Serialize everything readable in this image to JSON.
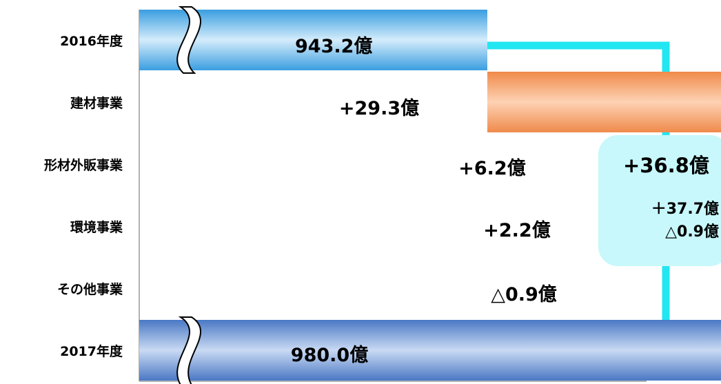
{
  "chart_data": {
    "type": "waterfall",
    "categories": [
      "2016年度",
      "建材事業",
      "形材外販事業",
      "環境事業",
      "その他事業",
      "2017年度"
    ],
    "values": [
      943.2,
      29.3,
      6.2,
      2.2,
      -0.9,
      980.0
    ],
    "value_labels": [
      "943.2億",
      "+29.3億",
      "+6.2億",
      "+2.2億",
      "△0.9億",
      "980.0億"
    ],
    "bar_kinds": [
      "total",
      "increase",
      "increase",
      "increase",
      "decrease",
      "total"
    ],
    "summary": {
      "total_change": 36.8,
      "total_change_label": "+36.8億",
      "breakdown": [
        {
          "value": 37.7,
          "label": "＋37.7億"
        },
        {
          "value": -0.9,
          "label": "△0.9億"
        }
      ]
    },
    "colors": {
      "total_2016": "#3a9ee0",
      "increase": "#f08a4b",
      "decrease": "#9a9a9a",
      "total_2017": "#4a78c4",
      "callout": "#c8f8fb",
      "arrow": "#22e6f2"
    },
    "axis_break": true,
    "grid": false,
    "legend": "none"
  }
}
